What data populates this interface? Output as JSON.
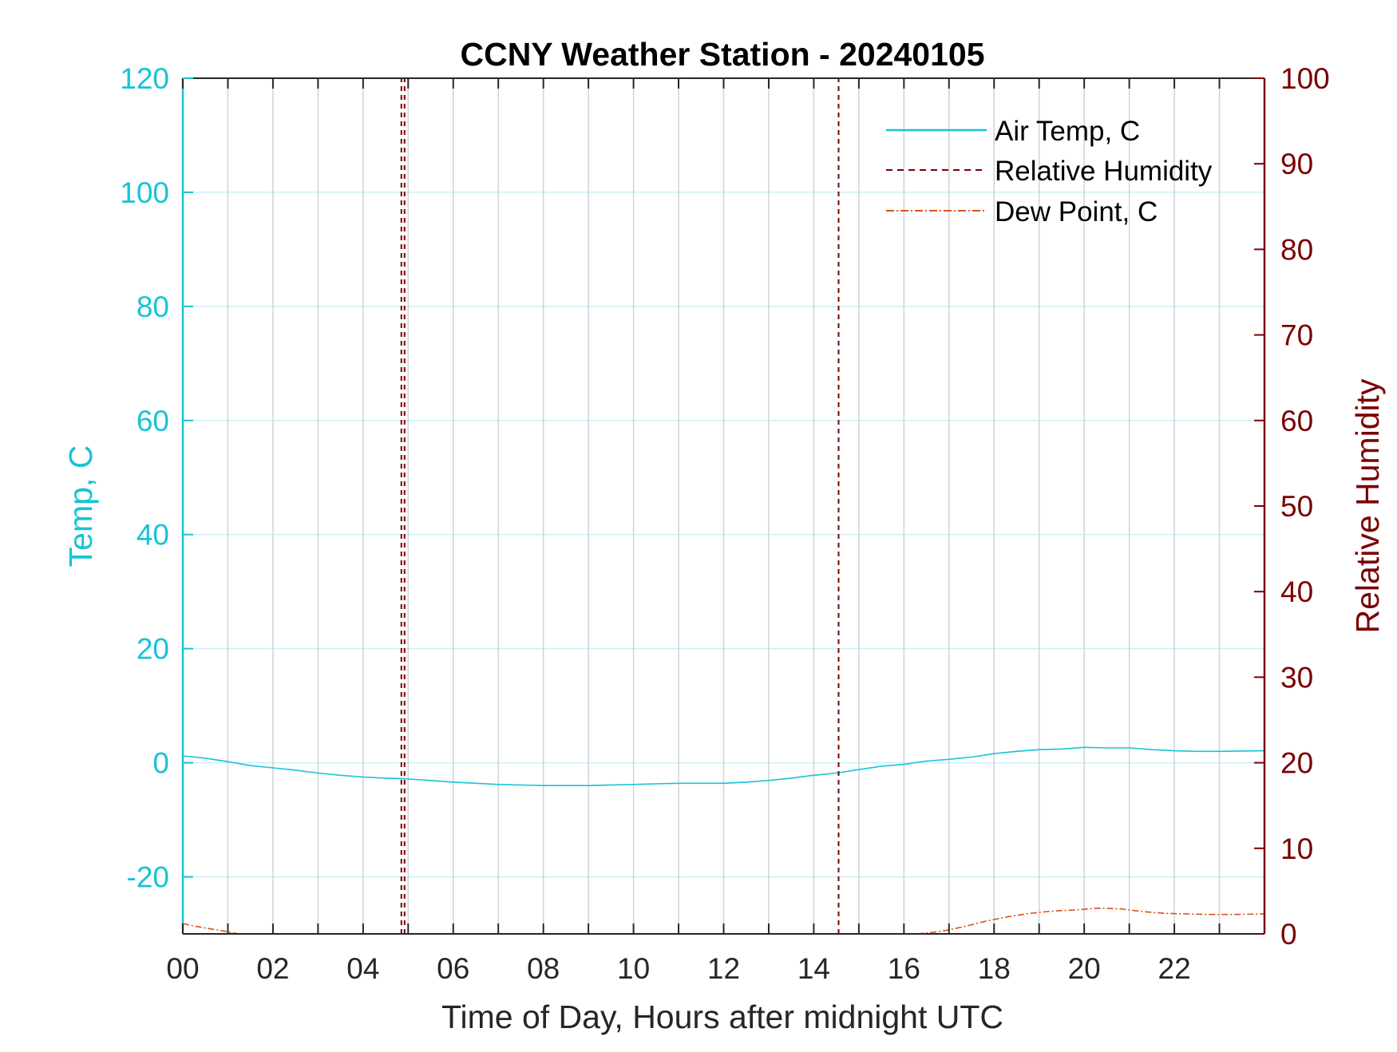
{
  "chart_data": {
    "type": "line",
    "title": "CCNY Weather Station - 20240105",
    "xlabel": "Time of Day, Hours after midnight UTC",
    "ylabel_left": "Temp, C",
    "ylabel_right": "Relative Humidity",
    "xlim": [
      0,
      24
    ],
    "ylim_left": [
      -30,
      120
    ],
    "ylim_right": [
      0,
      100
    ],
    "x_ticks": [
      0,
      2,
      4,
      6,
      8,
      10,
      12,
      14,
      16,
      18,
      20,
      22
    ],
    "x_tick_labels": [
      "00",
      "02",
      "04",
      "06",
      "08",
      "10",
      "12",
      "14",
      "16",
      "18",
      "20",
      "22"
    ],
    "x_minor_gridlines": [
      1,
      3,
      5,
      7,
      9,
      11,
      13,
      15,
      17,
      19,
      21,
      23
    ],
    "y_left_ticks": [
      -20,
      0,
      20,
      40,
      60,
      80,
      100,
      120
    ],
    "y_left_tick_labels": [
      "-20",
      "0",
      "20",
      "40",
      "60",
      "80",
      "100",
      "120"
    ],
    "y_right_ticks": [
      0,
      10,
      20,
      30,
      40,
      50,
      60,
      70,
      80,
      90,
      100
    ],
    "y_right_tick_labels": [
      "0",
      "10",
      "20",
      "30",
      "40",
      "50",
      "60",
      "70",
      "80",
      "90",
      "100"
    ],
    "grid": true,
    "legend_position": "top-right",
    "colors": {
      "air_temp": "#17c3d6",
      "relative_humidity": "#7a0000",
      "dew_point": "#d95319",
      "grid_vertical": "#cfd3d9",
      "grid_horizontal": "#cdeff4",
      "axis_frame": "#262626"
    },
    "series": [
      {
        "name": "Air Temp, C",
        "axis": "left",
        "style": "solid",
        "x": [
          0,
          0.5,
          1,
          1.5,
          2,
          2.5,
          3,
          3.5,
          4,
          4.5,
          4.9,
          5.5,
          6,
          6.5,
          7,
          7.5,
          8,
          8.5,
          9,
          9.5,
          10,
          10.5,
          11,
          11.5,
          12,
          12.5,
          13,
          13.5,
          14,
          14.5,
          15,
          15.5,
          16,
          16.5,
          17,
          17.5,
          18,
          18.5,
          19,
          19.5,
          20,
          20.5,
          21,
          21.5,
          22,
          22.5,
          23,
          24
        ],
        "values": [
          1.2,
          0.8,
          0.2,
          -0.5,
          -0.9,
          -1.3,
          -1.8,
          -2.2,
          -2.5,
          -2.7,
          -2.8,
          -3.1,
          -3.4,
          -3.6,
          -3.8,
          -3.9,
          -4.0,
          -4.0,
          -4.0,
          -3.9,
          -3.8,
          -3.7,
          -3.6,
          -3.6,
          -3.6,
          -3.4,
          -3.1,
          -2.7,
          -2.2,
          -1.8,
          -1.2,
          -0.6,
          -0.3,
          0.3,
          0.6,
          1.0,
          1.6,
          2.0,
          2.3,
          2.4,
          2.7,
          2.6,
          2.6,
          2.3,
          2.1,
          2.0,
          2.0,
          2.1
        ]
      },
      {
        "name": "Relative Humidity",
        "axis": "right",
        "style": "dashed",
        "segments": [
          {
            "x": [
              4.85,
              4.85
            ],
            "values": [
              0,
              100
            ]
          },
          {
            "x": [
              4.92,
              4.92
            ],
            "values": [
              0,
              100
            ]
          },
          {
            "x": [
              14.55,
              14.55
            ],
            "values": [
              0,
              100
            ]
          }
        ]
      },
      {
        "name": "Dew Point, C",
        "axis": "left",
        "style": "dash-dot",
        "segments": [
          {
            "x": [
              0,
              0.3,
              0.6,
              0.9,
              1.1,
              1.25
            ],
            "values": [
              -28.2,
              -28.7,
              -29.1,
              -29.5,
              -29.8,
              -30.0
            ]
          },
          {
            "x": [
              16.3,
              16.8,
              17.3,
              17.8,
              18.3,
              18.8,
              19.3,
              19.8,
              20.3,
              20.8,
              21.3,
              21.8,
              22.3,
              22.8,
              23.3,
              24
            ],
            "values": [
              -30.0,
              -29.6,
              -28.8,
              -27.8,
              -27.0,
              -26.4,
              -26.0,
              -25.8,
              -25.5,
              -25.6,
              -26.1,
              -26.4,
              -26.5,
              -26.6,
              -26.6,
              -26.5
            ]
          }
        ]
      }
    ],
    "legend": [
      "Air Temp, C",
      "Relative Humidity",
      "Dew Point, C"
    ]
  }
}
